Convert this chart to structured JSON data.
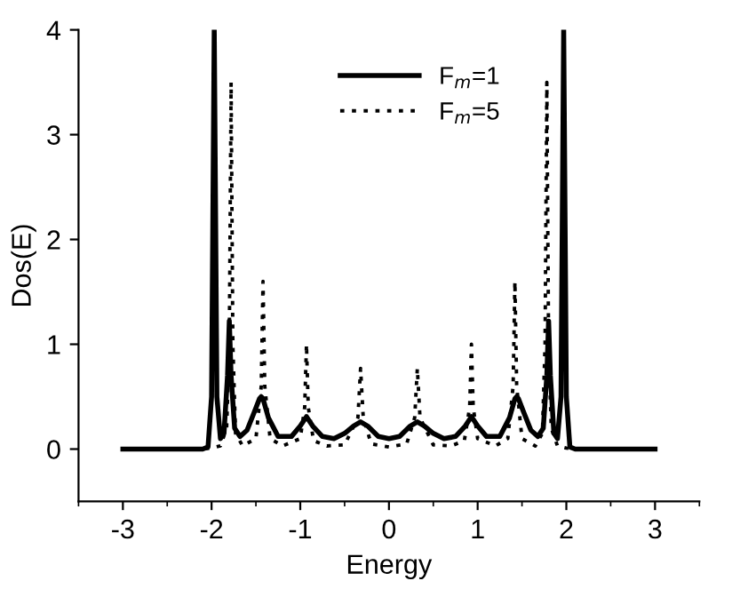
{
  "chart_data": {
    "type": "line",
    "xlabel": "Energy",
    "ylabel": "Dos(E)",
    "xlim": [
      -3.5,
      3.5
    ],
    "ylim": [
      -0.5,
      4
    ],
    "xticks": [
      -3,
      -2,
      -1,
      0,
      1,
      2,
      3
    ],
    "yticks": [
      0,
      1,
      2,
      3,
      4
    ],
    "grid": false,
    "legend": "top",
    "marker": "none",
    "series": [
      {
        "name": "F$_{m}$=1",
        "color": "#000000",
        "line_style": "solid",
        "x": [
          -3,
          -2.1,
          -2.04,
          -2.0,
          -1.97,
          -1.94,
          -1.9,
          -1.86,
          -1.82,
          -1.8,
          -1.78,
          -1.74,
          -1.68,
          -1.6,
          -1.52,
          -1.46,
          -1.44,
          -1.42,
          -1.36,
          -1.25,
          -1.1,
          -1.0,
          -0.93,
          -0.86,
          -0.75,
          -0.62,
          -0.5,
          -0.4,
          -0.32,
          -0.24,
          -0.12,
          0,
          0.12,
          0.24,
          0.32,
          0.4,
          0.5,
          0.62,
          0.75,
          0.86,
          0.93,
          1.0,
          1.1,
          1.25,
          1.36,
          1.42,
          1.44,
          1.46,
          1.52,
          1.6,
          1.68,
          1.74,
          1.78,
          1.8,
          1.82,
          1.86,
          1.9,
          1.94,
          1.97,
          2.0,
          2.04,
          2.1,
          3
        ],
        "values": [
          0,
          0,
          0.02,
          0.5,
          4,
          0.5,
          0.1,
          0.15,
          0.7,
          1.22,
          0.7,
          0.2,
          0.12,
          0.18,
          0.35,
          0.48,
          0.5,
          0.48,
          0.3,
          0.12,
          0.12,
          0.22,
          0.31,
          0.22,
          0.12,
          0.1,
          0.15,
          0.22,
          0.26,
          0.22,
          0.12,
          0.1,
          0.12,
          0.22,
          0.26,
          0.22,
          0.15,
          0.1,
          0.12,
          0.22,
          0.31,
          0.22,
          0.12,
          0.12,
          0.3,
          0.48,
          0.5,
          0.48,
          0.35,
          0.18,
          0.12,
          0.2,
          0.7,
          1.22,
          0.7,
          0.15,
          0.1,
          0.5,
          4,
          0.5,
          0.02,
          0,
          0
        ]
      },
      {
        "name": "F$_{m}$=5",
        "color": "#000000",
        "line_style": "dotted",
        "x": [
          -3,
          -2.1,
          -2.0,
          -1.9,
          -1.83,
          -1.8,
          -1.78,
          -1.76,
          -1.73,
          -1.65,
          -1.5,
          -1.44,
          -1.42,
          -1.4,
          -1.34,
          -1.2,
          -1.0,
          -0.95,
          -0.93,
          -0.91,
          -0.85,
          -0.7,
          -0.5,
          -0.35,
          -0.32,
          -0.29,
          -0.2,
          0,
          0.2,
          0.29,
          0.32,
          0.35,
          0.5,
          0.7,
          0.85,
          0.91,
          0.93,
          0.95,
          1.0,
          1.2,
          1.34,
          1.4,
          1.42,
          1.44,
          1.5,
          1.65,
          1.73,
          1.76,
          1.78,
          1.8,
          1.83,
          1.9,
          2.0,
          2.1,
          3
        ],
        "values": [
          0,
          0,
          0.01,
          0.03,
          0.2,
          1.0,
          3.5,
          1.0,
          0.15,
          0.03,
          0.1,
          0.6,
          1.6,
          0.6,
          0.1,
          0.03,
          0.1,
          0.4,
          1.0,
          0.4,
          0.08,
          0.03,
          0.04,
          0.3,
          0.77,
          0.3,
          0.05,
          0.02,
          0.05,
          0.3,
          0.77,
          0.3,
          0.04,
          0.03,
          0.08,
          0.4,
          1.0,
          0.4,
          0.1,
          0.03,
          0.1,
          0.6,
          1.6,
          0.6,
          0.1,
          0.03,
          0.15,
          1.0,
          3.5,
          1.0,
          0.2,
          0.03,
          0.01,
          0,
          0
        ]
      }
    ]
  }
}
